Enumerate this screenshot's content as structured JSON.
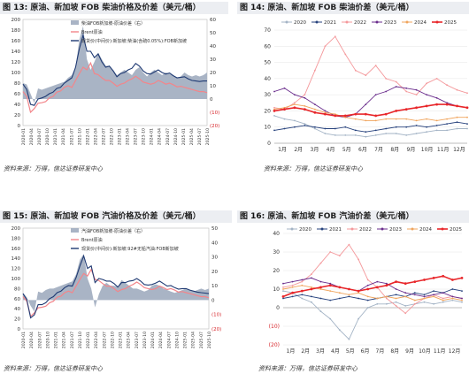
{
  "charts": [
    {
      "title_num": "图 13:",
      "title_text": "原油、新加坡 FOB 柴油价格及价差（美元/桶）",
      "source": "资料来源：万得，信达证券研发中心"
    },
    {
      "title_num": "图 14:",
      "title_text": "原油、新加坡 FOB 柴油价差（美元/桶）",
      "source": "资料来源：万得，信达证券研发中心"
    },
    {
      "title_num": "图 15:",
      "title_text": "原油、新加坡 FOB 汽油价格及价差（美元/桶）",
      "source": "资料来源：万得，信达证券研发中心"
    },
    {
      "title_num": "图 16:",
      "title_text": "原油、新加坡 FOB 汽油价差（美元/桶）",
      "source": "资料来源：万得，信达证券研发中心"
    }
  ],
  "chart_data": [
    {
      "type": "line",
      "legend": [
        "柴油FOB新加坡-原油价差（右）",
        "Brent原油",
        "现货价(中间价):新加坡:柴油(含硫0.05%):FOB新加坡"
      ],
      "x_ticks": [
        "2020-01",
        "2020-04",
        "2020-07",
        "2020-10",
        "2021-01",
        "2021-04",
        "2021-07",
        "2021-10",
        "2022-01",
        "2022-04",
        "2022-07",
        "2022-10",
        "2023-01",
        "2023-04",
        "2023-07",
        "2023-10",
        "2024-01",
        "2024-04",
        "2024-07",
        "2024-10",
        "2025-01",
        "2025-04",
        "2025-07",
        "2025-10"
      ],
      "ylim_left": [
        0,
        200
      ],
      "y_ticks_left": [
        "200",
        "180",
        "160",
        "140",
        "120",
        "100",
        "80",
        "60",
        "40",
        "20",
        "0"
      ],
      "ylim_right": [
        -20,
        60
      ],
      "y_ticks_right": [
        "60",
        "50",
        "40",
        "30",
        "20",
        "10",
        "0",
        "(10)",
        "(20)"
      ],
      "spread": [
        12,
        11,
        4,
        -3,
        8,
        7,
        8,
        9,
        10,
        11,
        12,
        13,
        16,
        18,
        24,
        45,
        55,
        30,
        22,
        28,
        35,
        30,
        25,
        25,
        22,
        18,
        20,
        22,
        20,
        18,
        22,
        24,
        20,
        17,
        20,
        22,
        20,
        18,
        20,
        19,
        18,
        16,
        17,
        20,
        18,
        17,
        18,
        17,
        18,
        20
      ],
      "brent": [
        64,
        55,
        25,
        32,
        42,
        43,
        45,
        52,
        55,
        63,
        65,
        72,
        75,
        72,
        85,
        98,
        110,
        105,
        118,
        98,
        96,
        90,
        85,
        85,
        80,
        74,
        78,
        80,
        85,
        88,
        93,
        88,
        82,
        80,
        78,
        80,
        85,
        82,
        78,
        80,
        77,
        73,
        74,
        72,
        70,
        68,
        66,
        64,
        64,
        62
      ],
      "diesel": [
        78,
        68,
        40,
        38,
        50,
        52,
        55,
        60,
        63,
        70,
        72,
        80,
        85,
        90,
        110,
        145,
        170,
        140,
        140,
        128,
        135,
        120,
        110,
        112,
        103,
        92,
        98,
        100,
        105,
        108,
        117,
        112,
        103,
        98,
        97,
        101,
        105,
        100,
        97,
        99,
        94,
        90,
        91,
        92,
        88,
        85,
        84,
        83,
        84,
        84
      ]
    },
    {
      "type": "line",
      "x_ticks": [
        "1月",
        "2月",
        "3月",
        "4月",
        "5月",
        "6月",
        "7月",
        "8月",
        "9月",
        "10月",
        "11月",
        "12月"
      ],
      "ylim": [
        0,
        70
      ],
      "y_ticks": [
        "70",
        "60",
        "50",
        "40",
        "30",
        "20",
        "10",
        "0"
      ],
      "series": [
        {
          "name": "2020",
          "color": "#a3b3c5",
          "values": [
            17,
            15,
            14,
            12,
            9,
            6,
            5,
            5,
            5,
            4,
            5,
            6,
            6,
            5,
            6,
            7,
            8,
            8,
            9,
            9
          ]
        },
        {
          "name": "2021",
          "color": "#27427d",
          "values": [
            8,
            9,
            10,
            11,
            10,
            9,
            9,
            10,
            8,
            7,
            8,
            9,
            10,
            10,
            11,
            10,
            11,
            12,
            13,
            12
          ]
        },
        {
          "name": "2022",
          "color": "#f4989b",
          "values": [
            22,
            21,
            25,
            30,
            45,
            60,
            66,
            55,
            45,
            42,
            48,
            40,
            38,
            32,
            30,
            37,
            40,
            36,
            33,
            31
          ]
        },
        {
          "name": "2023",
          "color": "#6a2d8c",
          "values": [
            32,
            34,
            30,
            28,
            24,
            20,
            17,
            16,
            18,
            24,
            30,
            32,
            35,
            34,
            33,
            30,
            28,
            25,
            23,
            22
          ]
        },
        {
          "name": "2024",
          "color": "#f0a45c",
          "values": [
            21,
            22,
            24,
            23,
            21,
            19,
            18,
            16,
            15,
            14,
            14,
            15,
            15,
            15,
            14,
            15,
            14,
            15,
            16,
            16
          ]
        },
        {
          "name": "2025",
          "color": "#e8262a",
          "values": [
            20,
            21,
            22,
            21,
            19,
            18,
            17,
            17,
            18,
            18,
            17,
            18,
            20,
            21,
            22,
            23,
            24,
            24,
            23,
            22
          ]
        }
      ]
    },
    {
      "type": "line",
      "legend": [
        "汽油FOB新加坡-原油价差（右）",
        "Brent原油",
        "现货价(中间价):新加坡:92#无铅汽油:FOB新加坡"
      ],
      "x_ticks": [
        "2020-01",
        "2020-04",
        "2020-07",
        "2020-10",
        "2021-01",
        "2021-04",
        "2021-07",
        "2021-10",
        "2022-01",
        "2022-04",
        "2022-07",
        "2022-10",
        "2023-01",
        "2023-04",
        "2023-07",
        "2023-10",
        "2024-01",
        "2024-04",
        "2024-07",
        "2024-10",
        "2025-01",
        "2025-04",
        "2025-07",
        "2025-10"
      ],
      "ylim_left": [
        0,
        200
      ],
      "y_ticks_left": [
        "200",
        "180",
        "160",
        "140",
        "120",
        "100",
        "80",
        "60",
        "40",
        "20",
        "0"
      ],
      "ylim_right": [
        -20,
        50
      ],
      "y_ticks_right": [
        "50",
        "40",
        "30",
        "20",
        "10",
        "0",
        "(10)",
        "(20)"
      ],
      "spread": [
        5,
        2,
        -4,
        -8,
        6,
        5,
        7,
        8,
        8,
        9,
        10,
        11,
        12,
        13,
        18,
        28,
        32,
        15,
        8,
        -5,
        4,
        10,
        12,
        10,
        10,
        9,
        14,
        12,
        10,
        8,
        8,
        7,
        6,
        7,
        10,
        11,
        10,
        8,
        7,
        6,
        5,
        6,
        7,
        8,
        7,
        6,
        7,
        8,
        7,
        8
      ],
      "brent": [
        64,
        55,
        25,
        32,
        42,
        43,
        45,
        52,
        55,
        63,
        65,
        72,
        75,
        72,
        85,
        98,
        110,
        105,
        118,
        98,
        96,
        90,
        85,
        85,
        80,
        74,
        78,
        80,
        85,
        88,
        93,
        88,
        82,
        80,
        78,
        80,
        85,
        82,
        78,
        80,
        77,
        73,
        74,
        72,
        70,
        68,
        66,
        64,
        64,
        62
      ],
      "gasoline": [
        70,
        58,
        22,
        28,
        48,
        48,
        52,
        60,
        64,
        72,
        75,
        82,
        86,
        85,
        102,
        125,
        145,
        120,
        125,
        92,
        100,
        98,
        95,
        95,
        90,
        83,
        92,
        92,
        95,
        96,
        100,
        95,
        88,
        87,
        88,
        91,
        95,
        90,
        85,
        86,
        82,
        79,
        80,
        80,
        77,
        75,
        73,
        72,
        71,
        70
      ]
    },
    {
      "type": "line",
      "x_ticks": [
        "1月",
        "2月",
        "3月",
        "4月",
        "5月",
        "6月",
        "7月",
        "8月",
        "9月",
        "10月",
        "11月",
        "12月"
      ],
      "ylim": [
        -20,
        40
      ],
      "y_ticks": [
        "40",
        "30",
        "20",
        "10",
        "0",
        "(10)",
        "(20)"
      ],
      "series": [
        {
          "name": "2020",
          "color": "#a3b3c5",
          "values": [
            9,
            8,
            5,
            3,
            -2,
            -6,
            -12,
            -17,
            -6,
            0,
            2,
            2,
            3,
            1,
            2,
            3,
            2,
            3,
            4,
            3
          ]
        },
        {
          "name": "2021",
          "color": "#27427d",
          "values": [
            5,
            6,
            7,
            6,
            5,
            4,
            5,
            6,
            5,
            4,
            5,
            6,
            7,
            6,
            8,
            7,
            9,
            8,
            10,
            9
          ]
        },
        {
          "name": "2022",
          "color": "#f4989b",
          "values": [
            11,
            12,
            14,
            18,
            24,
            30,
            28,
            34,
            26,
            15,
            11,
            5,
            1,
            -3,
            2,
            5,
            7,
            5,
            6,
            5
          ]
        },
        {
          "name": "2023",
          "color": "#6a2d8c",
          "values": [
            13,
            14,
            15,
            16,
            14,
            13,
            11,
            10,
            9,
            12,
            14,
            13,
            10,
            8,
            7,
            6,
            7,
            8,
            6,
            5
          ]
        },
        {
          "name": "2024",
          "color": "#f0a45c",
          "values": [
            10,
            11,
            12,
            11,
            10,
            9,
            8,
            7,
            8,
            6,
            5,
            6,
            5,
            6,
            4,
            5,
            6,
            4,
            5,
            4
          ]
        },
        {
          "name": "2025",
          "color": "#e8262a",
          "values": [
            6,
            8,
            9,
            10,
            11,
            12,
            11,
            10,
            9,
            10,
            11,
            12,
            14,
            13,
            14,
            15,
            16,
            17,
            15,
            16
          ]
        }
      ]
    }
  ]
}
